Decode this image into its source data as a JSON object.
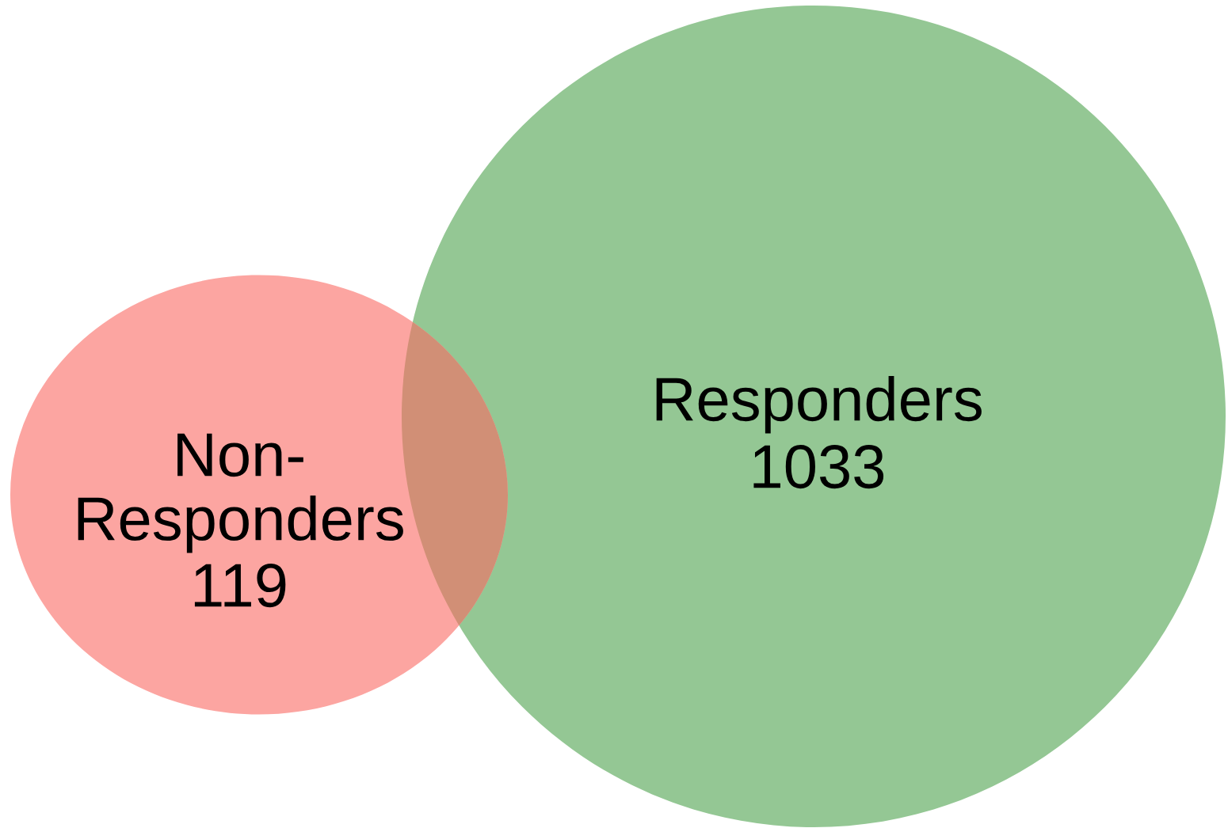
{
  "chart_data": {
    "type": "other",
    "categories": [
      "Non-\nResponders",
      "Responders"
    ],
    "values": [
      119,
      1033
    ],
    "colors": [
      "#fca5a1",
      "#94c794"
    ],
    "data_labels": true
  }
}
